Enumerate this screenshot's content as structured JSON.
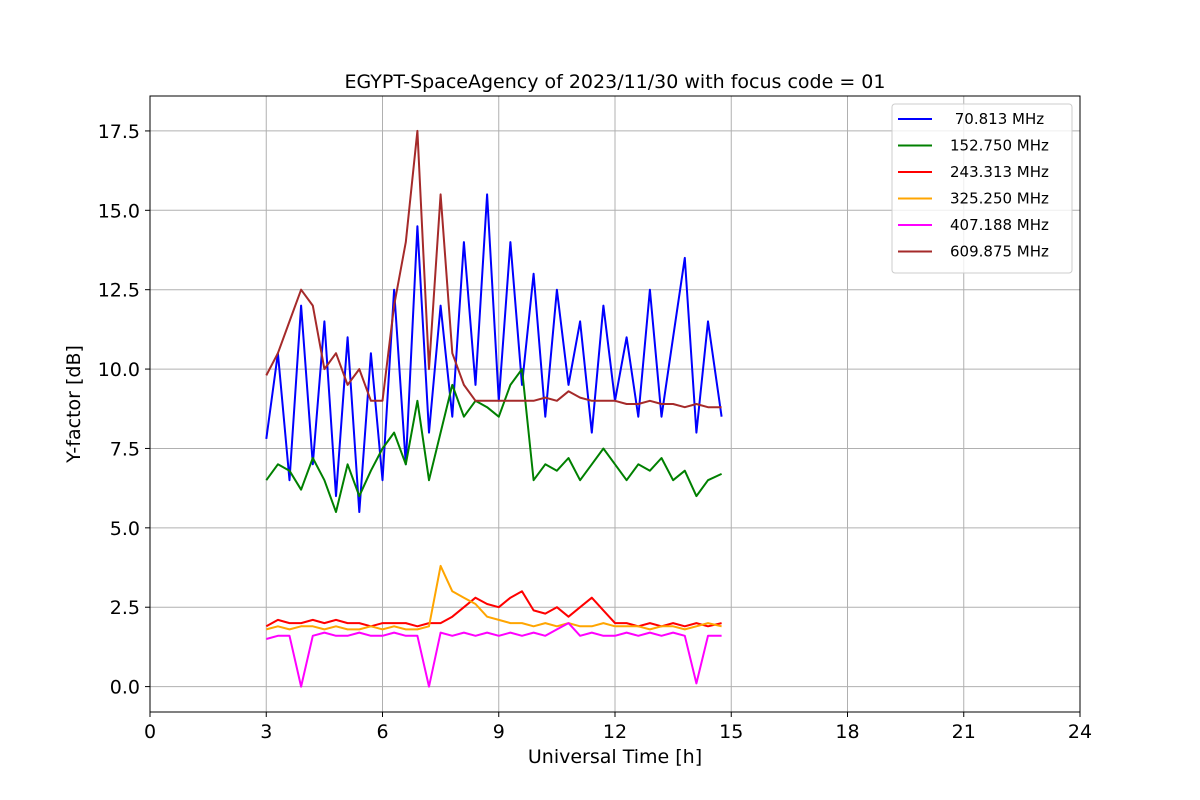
{
  "chart_data": {
    "type": "line",
    "title": "EGYPT-SpaceAgency of 2023/11/30 with focus code = 01",
    "xlabel": "Universal Time [h]",
    "ylabel": "Y-factor [dB]",
    "xlim": [
      0,
      24
    ],
    "ylim": [
      -0.8,
      18.6
    ],
    "xticks": [
      0,
      3,
      6,
      9,
      12,
      15,
      18,
      21,
      24
    ],
    "xtick_labels": [
      "0",
      "3",
      "6",
      "9",
      "12",
      "15",
      "18",
      "21",
      "24"
    ],
    "yticks": [
      0.0,
      2.5,
      5.0,
      7.5,
      10.0,
      12.5,
      15.0,
      17.5
    ],
    "ytick_labels": [
      "0.0",
      "2.5",
      "5.0",
      "7.5",
      "10.0",
      "12.5",
      "15.0",
      "17.5"
    ],
    "grid": true,
    "legend_position": "top-right",
    "series": [
      {
        "name": " 70.813 MHz",
        "color": "#0000ff",
        "x": [
          3.0,
          3.3,
          3.6,
          3.9,
          4.2,
          4.5,
          4.8,
          5.1,
          5.4,
          5.7,
          6.0,
          6.3,
          6.6,
          6.9,
          7.2,
          7.5,
          7.8,
          8.1,
          8.4,
          8.7,
          9.0,
          9.3,
          9.6,
          9.9,
          10.2,
          10.5,
          10.8,
          11.1,
          11.4,
          11.7,
          12.0,
          12.3,
          12.6,
          12.9,
          13.2,
          13.5,
          13.8,
          14.1,
          14.4,
          14.75
        ],
        "y": [
          7.8,
          10.5,
          6.5,
          12.0,
          7.0,
          11.5,
          6.0,
          11.0,
          5.5,
          10.5,
          6.5,
          12.5,
          7.0,
          14.5,
          8.0,
          12.0,
          8.5,
          14.0,
          9.5,
          15.5,
          9.0,
          14.0,
          9.5,
          13.0,
          8.5,
          12.5,
          9.5,
          11.5,
          8.0,
          12.0,
          9.0,
          11.0,
          8.5,
          12.5,
          8.5,
          11.0,
          13.5,
          8.0,
          11.5,
          8.5
        ]
      },
      {
        "name": "152.750 MHz",
        "color": "#008000",
        "x": [
          3.0,
          3.3,
          3.6,
          3.9,
          4.2,
          4.5,
          4.8,
          5.1,
          5.4,
          5.7,
          6.0,
          6.3,
          6.6,
          6.9,
          7.2,
          7.5,
          7.8,
          8.1,
          8.4,
          8.7,
          9.0,
          9.3,
          9.6,
          9.9,
          10.2,
          10.5,
          10.8,
          11.1,
          11.4,
          11.7,
          12.0,
          12.3,
          12.6,
          12.9,
          13.2,
          13.5,
          13.8,
          14.1,
          14.4,
          14.75
        ],
        "y": [
          6.5,
          7.0,
          6.8,
          6.2,
          7.2,
          6.5,
          5.5,
          7.0,
          6.0,
          6.8,
          7.5,
          8.0,
          7.0,
          9.0,
          6.5,
          8.0,
          9.5,
          8.5,
          9.0,
          8.8,
          8.5,
          9.5,
          10.0,
          6.5,
          7.0,
          6.8,
          7.2,
          6.5,
          7.0,
          7.5,
          7.0,
          6.5,
          7.0,
          6.8,
          7.2,
          6.5,
          6.8,
          6.0,
          6.5,
          6.7
        ]
      },
      {
        "name": "243.313 MHz",
        "color": "#ff0000",
        "x": [
          3.0,
          3.3,
          3.6,
          3.9,
          4.2,
          4.5,
          4.8,
          5.1,
          5.4,
          5.7,
          6.0,
          6.3,
          6.6,
          6.9,
          7.2,
          7.5,
          7.8,
          8.1,
          8.4,
          8.7,
          9.0,
          9.3,
          9.6,
          9.9,
          10.2,
          10.5,
          10.8,
          11.1,
          11.4,
          11.7,
          12.0,
          12.3,
          12.6,
          12.9,
          13.2,
          13.5,
          13.8,
          14.1,
          14.4,
          14.75
        ],
        "y": [
          1.9,
          2.1,
          2.0,
          2.0,
          2.1,
          2.0,
          2.1,
          2.0,
          2.0,
          1.9,
          2.0,
          2.0,
          2.0,
          1.9,
          2.0,
          2.0,
          2.2,
          2.5,
          2.8,
          2.6,
          2.5,
          2.8,
          3.0,
          2.4,
          2.3,
          2.5,
          2.2,
          2.5,
          2.8,
          2.4,
          2.0,
          2.0,
          1.9,
          2.0,
          1.9,
          2.0,
          1.9,
          2.0,
          1.9,
          2.0
        ]
      },
      {
        "name": "325.250 MHz",
        "color": "#ffa500",
        "x": [
          3.0,
          3.3,
          3.6,
          3.9,
          4.2,
          4.5,
          4.8,
          5.1,
          5.4,
          5.7,
          6.0,
          6.3,
          6.6,
          6.9,
          7.2,
          7.5,
          7.8,
          8.1,
          8.4,
          8.7,
          9.0,
          9.3,
          9.6,
          9.9,
          10.2,
          10.5,
          10.8,
          11.1,
          11.4,
          11.7,
          12.0,
          12.3,
          12.6,
          12.9,
          13.2,
          13.5,
          13.8,
          14.1,
          14.4,
          14.75
        ],
        "y": [
          1.8,
          1.9,
          1.8,
          1.9,
          1.9,
          1.8,
          1.9,
          1.8,
          1.8,
          1.9,
          1.8,
          1.9,
          1.8,
          1.8,
          1.9,
          3.8,
          3.0,
          2.8,
          2.6,
          2.2,
          2.1,
          2.0,
          2.0,
          1.9,
          2.0,
          1.9,
          2.0,
          1.9,
          1.9,
          2.0,
          1.9,
          1.9,
          1.9,
          1.8,
          1.9,
          1.9,
          1.8,
          1.9,
          2.0,
          1.9
        ]
      },
      {
        "name": "407.188 MHz",
        "color": "#ff00ff",
        "x": [
          3.0,
          3.3,
          3.6,
          3.9,
          4.2,
          4.5,
          4.8,
          5.1,
          5.4,
          5.7,
          6.0,
          6.3,
          6.6,
          6.9,
          7.2,
          7.5,
          7.8,
          8.1,
          8.4,
          8.7,
          9.0,
          9.3,
          9.6,
          9.9,
          10.2,
          10.5,
          10.8,
          11.1,
          11.4,
          11.7,
          12.0,
          12.3,
          12.6,
          12.9,
          13.2,
          13.5,
          13.8,
          14.1,
          14.4,
          14.75
        ],
        "y": [
          1.5,
          1.6,
          1.6,
          0.0,
          1.6,
          1.7,
          1.6,
          1.6,
          1.7,
          1.6,
          1.6,
          1.7,
          1.6,
          1.6,
          0.0,
          1.7,
          1.6,
          1.7,
          1.6,
          1.7,
          1.6,
          1.7,
          1.6,
          1.7,
          1.6,
          1.8,
          2.0,
          1.6,
          1.7,
          1.6,
          1.6,
          1.7,
          1.6,
          1.7,
          1.6,
          1.7,
          1.6,
          0.1,
          1.6,
          1.6
        ]
      },
      {
        "name": "609.875 MHz",
        "color": "#a52a2a",
        "x": [
          3.0,
          3.3,
          3.6,
          3.9,
          4.2,
          4.5,
          4.8,
          5.1,
          5.4,
          5.7,
          6.0,
          6.3,
          6.6,
          6.9,
          7.2,
          7.5,
          7.8,
          8.1,
          8.4,
          8.7,
          9.0,
          9.3,
          9.6,
          9.9,
          10.2,
          10.5,
          10.8,
          11.1,
          11.4,
          11.7,
          12.0,
          12.3,
          12.6,
          12.9,
          13.2,
          13.5,
          13.8,
          14.1,
          14.4,
          14.75
        ],
        "y": [
          9.8,
          10.5,
          11.5,
          12.5,
          12.0,
          10.0,
          10.5,
          9.5,
          10.0,
          9.0,
          9.0,
          12.0,
          14.0,
          17.5,
          10.0,
          15.5,
          10.5,
          9.5,
          9.0,
          9.0,
          9.0,
          9.0,
          9.0,
          9.0,
          9.1,
          9.0,
          9.3,
          9.1,
          9.0,
          9.0,
          9.0,
          8.9,
          8.9,
          9.0,
          8.9,
          8.9,
          8.8,
          8.9,
          8.8,
          8.8
        ]
      }
    ]
  }
}
